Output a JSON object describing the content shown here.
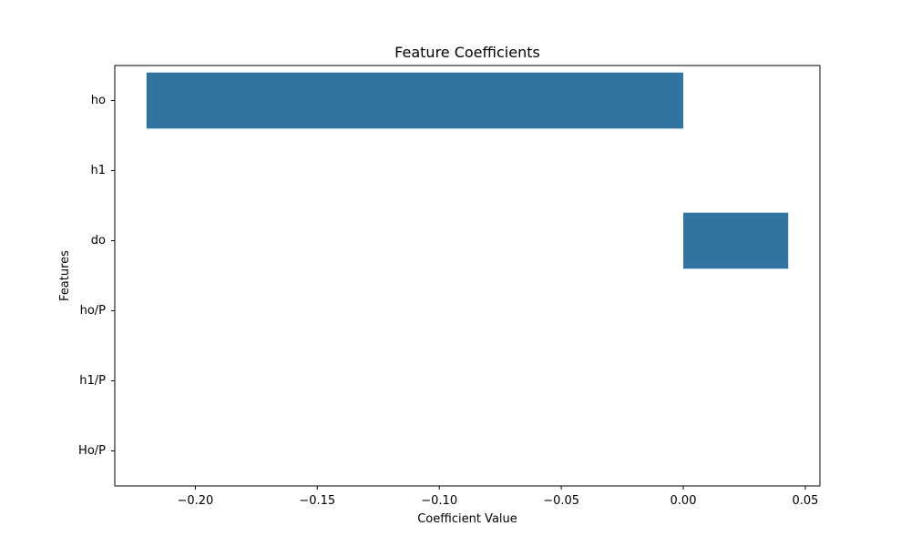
{
  "chart_data": {
    "type": "bar",
    "orientation": "horizontal",
    "title": "Feature Coefficients",
    "xlabel": "Coefficient Value",
    "ylabel": "Features",
    "categories": [
      "ho",
      "h1",
      "do",
      "ho/P",
      "h1/P",
      "Ho/P"
    ],
    "values": [
      -0.22,
      0.0,
      0.043,
      0.0,
      0.0,
      0.0
    ],
    "xlim": [
      -0.233,
      0.056
    ],
    "xticks": [
      -0.2,
      -0.15,
      -0.1,
      -0.05,
      0.0,
      0.05
    ],
    "xtick_labels": [
      "−0.20",
      "−0.15",
      "−0.10",
      "−0.05",
      "0.00",
      "0.05"
    ],
    "grid": false,
    "bar_color": "#3274a1"
  }
}
